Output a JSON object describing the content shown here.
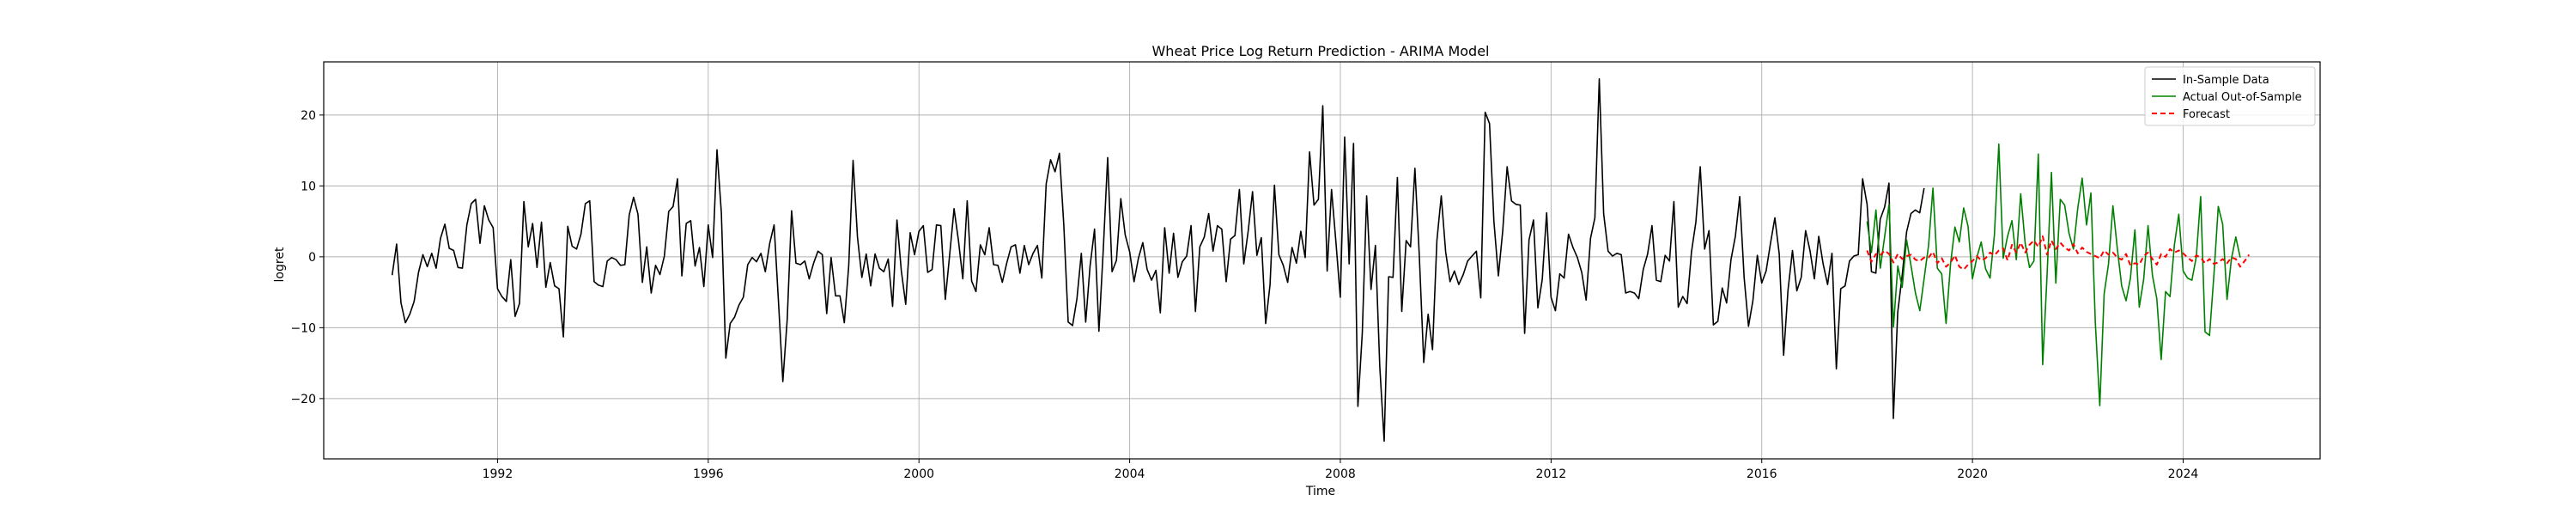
{
  "chart_data": {
    "type": "line",
    "title": "Wheat Price Log Return Prediction - ARIMA Model",
    "xlabel": "Time",
    "ylabel": "logret",
    "xlim": [
      1988.7,
      2026.6
    ],
    "ylim": [
      -28.5,
      27.5
    ],
    "x_ticks": [
      1992,
      1996,
      2000,
      2004,
      2008,
      2012,
      2016,
      2020,
      2024
    ],
    "y_ticks": [
      -20,
      -10,
      0,
      10,
      20
    ],
    "grid": true,
    "legend_position": "top-right",
    "series": [
      {
        "name": "In-Sample Data",
        "color": "#000000",
        "x_start": 1990.0,
        "x_step": 0.08333,
        "values": [
          -2.6,
          1.8,
          -6.5,
          -9.3,
          -8.1,
          -6.3,
          -2.2,
          0.3,
          -1.4,
          0.5,
          -1.6,
          2.6,
          4.6,
          1.2,
          0.9,
          -1.5,
          -1.6,
          4.5,
          7.5,
          8.1,
          1.9,
          7.2,
          5.2,
          4.1,
          -4.5,
          -5.6,
          -6.3,
          -0.4,
          -8.4,
          -6.6,
          7.8,
          1.4,
          4.7,
          -1.5,
          4.9,
          -4.3,
          -0.8,
          -4.1,
          -4.5,
          -11.3,
          4.3,
          1.5,
          1.1,
          3.2,
          7.5,
          7.9,
          -3.5,
          -4.0,
          -4.2,
          -0.6,
          -0.1,
          -0.4,
          -1.2,
          -1.1,
          5.9,
          8.4,
          6.0,
          -3.6,
          1.4,
          -5.1,
          -1.2,
          -2.5,
          0.1,
          6.4,
          7.1,
          11.0,
          -2.7,
          4.7,
          5.1,
          -1.3,
          1.3,
          -4.2,
          4.5,
          -0.1,
          15.1,
          6.2,
          -14.3,
          -9.4,
          -8.5,
          -6.8,
          -5.7,
          -1.1,
          -0.1,
          -0.7,
          0.5,
          -2.1,
          1.9,
          4.5,
          -6.3,
          -17.6,
          -8.8,
          6.5,
          -0.9,
          -1.1,
          -0.6,
          -3.1,
          -0.9,
          0.8,
          0.3,
          -8.0,
          -0.1,
          -5.5,
          -5.5,
          -9.3,
          -1.3,
          13.6,
          2.8,
          -2.9,
          0.4,
          -4.1,
          0.4,
          -1.6,
          -2.1,
          -0.3,
          -7.0,
          5.2,
          -2.0,
          -6.7,
          3.4,
          0.3,
          3.6,
          4.4,
          -2.2,
          -1.8,
          4.5,
          4.4,
          -6.0,
          0.3,
          6.8,
          2.3,
          -3.1,
          7.9,
          -3.4,
          -4.9,
          1.7,
          0.3,
          4.1,
          -1.1,
          -1.2,
          -3.6,
          -0.9,
          1.4,
          1.7,
          -2.3,
          1.6,
          -1.1,
          0.5,
          1.6,
          -3.0,
          10.3,
          13.7,
          12.0,
          14.6,
          4.5,
          -9.2,
          -9.7,
          -5.9,
          0.5,
          -9.2,
          -1.3,
          3.9,
          -10.5,
          1.1,
          14.0,
          -2.1,
          -0.5,
          8.2,
          3.1,
          0.7,
          -3.5,
          -0.2,
          2.0,
          -1.8,
          -3.3,
          -1.9,
          -7.9,
          4.1,
          -2.3,
          3.3,
          -2.9,
          -0.7,
          0.1,
          4.4,
          -7.7,
          1.4,
          2.8,
          6.1,
          0.8,
          4.4,
          3.9,
          -3.5,
          2.5,
          3.0,
          9.5,
          -1.0,
          3.6,
          9.2,
          0.2,
          2.7,
          -9.4,
          -3.9,
          10.1,
          0.3,
          -1.2,
          -3.6,
          1.3,
          -0.9,
          3.6,
          -0.1,
          14.8,
          7.3,
          8.1,
          21.3,
          -2.0,
          9.5,
          2.1,
          -5.7,
          16.9,
          -1.0,
          16.0,
          -21.1,
          -10.8,
          8.6,
          -4.6,
          1.6,
          -15.5,
          -26.0,
          -2.8,
          -2.9,
          11.2,
          -7.7,
          2.3,
          1.4,
          12.5,
          0.2,
          -14.9,
          -8.1,
          -13.1,
          2.3,
          8.6,
          0.7,
          -3.5,
          -2.0,
          -3.9,
          -2.5,
          -0.6,
          0.1,
          0.8,
          -5.8,
          20.4,
          18.8,
          5.0,
          -2.7,
          3.7,
          12.7,
          7.9,
          7.4,
          7.3,
          -10.8,
          2.4,
          5.2,
          -7.2,
          -3.2,
          6.2,
          -5.7,
          -7.6,
          -2.4,
          -3.0,
          3.2,
          1.3,
          -0.1,
          -2.2,
          -6.1,
          2.6,
          5.5,
          25.1,
          6.1,
          0.8,
          0.1,
          0.5,
          0.3,
          -5.1,
          -4.9,
          -5.1,
          -5.9,
          -1.8,
          0.4,
          4.4,
          -3.3,
          -3.5,
          0.2,
          -0.6,
          7.8,
          -7.1,
          -5.6,
          -6.6,
          0.7,
          4.9,
          12.7,
          1.1,
          3.7,
          -9.6,
          -9.1,
          -4.4,
          -6.5,
          -0.4,
          2.9,
          8.5,
          -2.9,
          -9.8,
          -6.2,
          0.2,
          -3.7,
          -2.0,
          1.9,
          5.5,
          0.4,
          -13.9,
          -4.7,
          0.9,
          -4.8,
          -2.9,
          3.7,
          0.9,
          -3.1,
          2.9,
          -1.0,
          -3.9,
          0.5,
          -15.8,
          -4.5,
          -4.1,
          -0.6,
          0.1,
          0.3,
          11.0,
          7.4,
          -2.1,
          -2.3,
          5.3,
          7.0,
          10.4,
          -22.8,
          -7.8,
          -2.6,
          3.5,
          6.1,
          6.6,
          6.2,
          9.7
        ]
      },
      {
        "name": "Actual Out-of-Sample",
        "color": "#008000",
        "x_start": 2018.0,
        "x_step": 0.08333,
        "values": [
          5.0,
          0.6,
          6.6,
          -1.6,
          2.9,
          7.4,
          -9.9,
          -1.3,
          -4.3,
          2.4,
          -1.2,
          -5.1,
          -7.6,
          -3.0,
          1.6,
          9.7,
          -1.6,
          -2.4,
          -9.4,
          -1.0,
          4.2,
          2.1,
          6.9,
          4.3,
          -3.1,
          -0.1,
          2.1,
          -1.7,
          -3.0,
          3.1,
          15.9,
          -0.2,
          2.9,
          5.1,
          -0.4,
          8.9,
          1.9,
          -1.5,
          -0.6,
          14.5,
          -15.2,
          -2.6,
          11.9,
          -3.7,
          8.1,
          7.3,
          3.3,
          1.1,
          6.9,
          11.1,
          4.5,
          9.0,
          -9.3,
          -21.0,
          -5.2,
          -1.0,
          7.2,
          1.2,
          -4.1,
          -6.2,
          -3.0,
          3.8,
          -7.1,
          -3.2,
          4.4,
          -2.6,
          -5.9,
          -14.5,
          -4.9,
          -5.6,
          1.7,
          6.0,
          -2.0,
          -3.0,
          -3.3,
          0.0,
          8.5,
          -10.6,
          -11.1,
          -2.6,
          7.1,
          4.6,
          -6.0,
          -0.3,
          2.8,
          -0.1
        ]
      },
      {
        "name": "Forecast",
        "color": "#ff0000",
        "dash": "dashed",
        "x_start": 2018.0,
        "x_step": 0.08333,
        "values": [
          0.9,
          -0.7,
          0.4,
          0.2,
          0.9,
          0.4,
          -0.8,
          0.4,
          -0.3,
          0.1,
          0.3,
          -0.4,
          -0.6,
          -0.1,
          -0.1,
          0.7,
          -0.9,
          -0.2,
          -1.4,
          -0.8,
          0.2,
          -1.4,
          -1.8,
          -1.1,
          -0.6,
          0.1,
          -0.5,
          -0.2,
          0.6,
          0.2,
          0.9,
          1.2,
          -0.5,
          1.7,
          0.6,
          2.0,
          0.6,
          1.7,
          2.3,
          1.4,
          2.9,
          0.3,
          2.3,
          1.1,
          2.0,
          1.3,
          0.9,
          1.8,
          0.5,
          1.3,
          0.7,
          0.4,
          0.1,
          -0.2,
          0.9,
          0.3,
          0.6,
          -0.1,
          -0.4,
          0.4,
          -1.2,
          -0.9,
          -1.1,
          0.1,
          0.6,
          -0.3,
          -1.1,
          0.4,
          0.0,
          1.1,
          0.6,
          0.9,
          0.5,
          -0.1,
          -0.6,
          0.2,
          -0.1,
          -0.9,
          -0.3,
          -1.0,
          -0.8,
          -0.3,
          -0.9,
          -0.1,
          -0.3,
          -1.4,
          -0.6,
          0.3
        ]
      }
    ]
  }
}
